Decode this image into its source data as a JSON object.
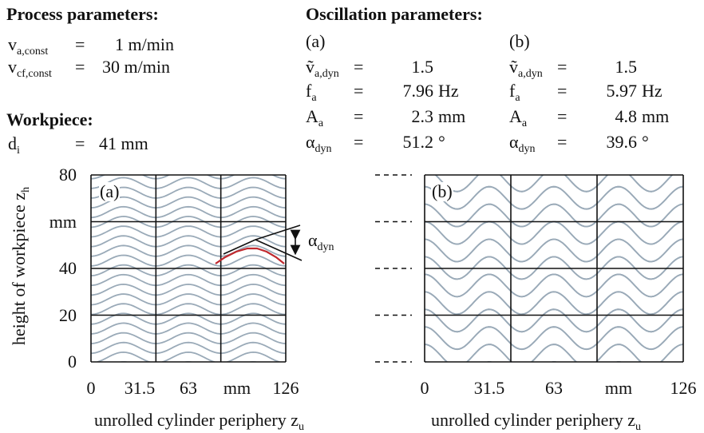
{
  "process": {
    "title": "Process parameters:",
    "rows": [
      {
        "sym": "v",
        "sub": "a,const",
        "eq": "=",
        "val": "1 m/min"
      },
      {
        "sym": "v",
        "sub": "cf,const",
        "eq": "=",
        "val": "30 m/min"
      }
    ]
  },
  "workpiece": {
    "title": "Workpiece:",
    "rows": [
      {
        "sym": "d",
        "sub": "i",
        "eq": "=",
        "val": "41 mm"
      }
    ]
  },
  "oscillation": {
    "title": "Oscillation parameters:",
    "cols": [
      {
        "label": "(a)",
        "rows": [
          {
            "sym": "ṽ",
            "sub": "a,dyn",
            "eq": "=",
            "val": "1.5",
            "unit": ""
          },
          {
            "sym": "f",
            "sub": "a",
            "eq": "=",
            "val": "7.96",
            "unit": "Hz"
          },
          {
            "sym": "A",
            "sub": "a",
            "eq": "=",
            "val": "2.3",
            "unit": "mm"
          },
          {
            "sym": "α",
            "sub": "dyn",
            "eq": "=",
            "val": "51.2",
            "unit": "°"
          }
        ]
      },
      {
        "label": "(b)",
        "rows": [
          {
            "sym": "ṽ",
            "sub": "a,dyn",
            "eq": "=",
            "val": "1.5",
            "unit": ""
          },
          {
            "sym": "f",
            "sub": "a",
            "eq": "=",
            "val": "5.97",
            "unit": "Hz"
          },
          {
            "sym": "A",
            "sub": "a",
            "eq": "=",
            "val": "4.8",
            "unit": "mm"
          },
          {
            "sym": "α",
            "sub": "dyn",
            "eq": "=",
            "val": "39.6",
            "unit": "°"
          }
        ]
      }
    ]
  },
  "chart_data": [
    {
      "type": "line",
      "panel_label": "(a)",
      "title": "",
      "xlabel": "unrolled cylinder periphery z",
      "xlabel_sub": "u",
      "ylabel": "height of workpiece z",
      "ylabel_sub": "h",
      "x_ticks": [
        "0",
        "31.5",
        "63",
        "mm",
        "126"
      ],
      "y_ticks": [
        "0",
        "20",
        "40",
        "mm",
        "80"
      ],
      "xlim": [
        0,
        126
      ],
      "ylim": [
        0,
        80
      ],
      "grid": true,
      "amplitude_mm": 2.3,
      "periods_across": 3,
      "line_spacing_mm": 4.15,
      "line_color": "#9aaab8",
      "highlight_color": "#c0282d",
      "annotation": {
        "sym": "α",
        "sub": "dyn"
      }
    },
    {
      "type": "line",
      "panel_label": "(b)",
      "title": "",
      "xlabel": "unrolled cylinder periphery z",
      "xlabel_sub": "u",
      "ylabel": "",
      "x_ticks": [
        "0",
        "31.5",
        "63",
        "mm",
        "126"
      ],
      "xlim": [
        0,
        126
      ],
      "ylim": [
        0,
        80
      ],
      "grid": true,
      "amplitude_mm": 4.8,
      "periods_across": 4,
      "line_spacing_mm": 7.5,
      "line_color": "#9aaab8"
    }
  ]
}
